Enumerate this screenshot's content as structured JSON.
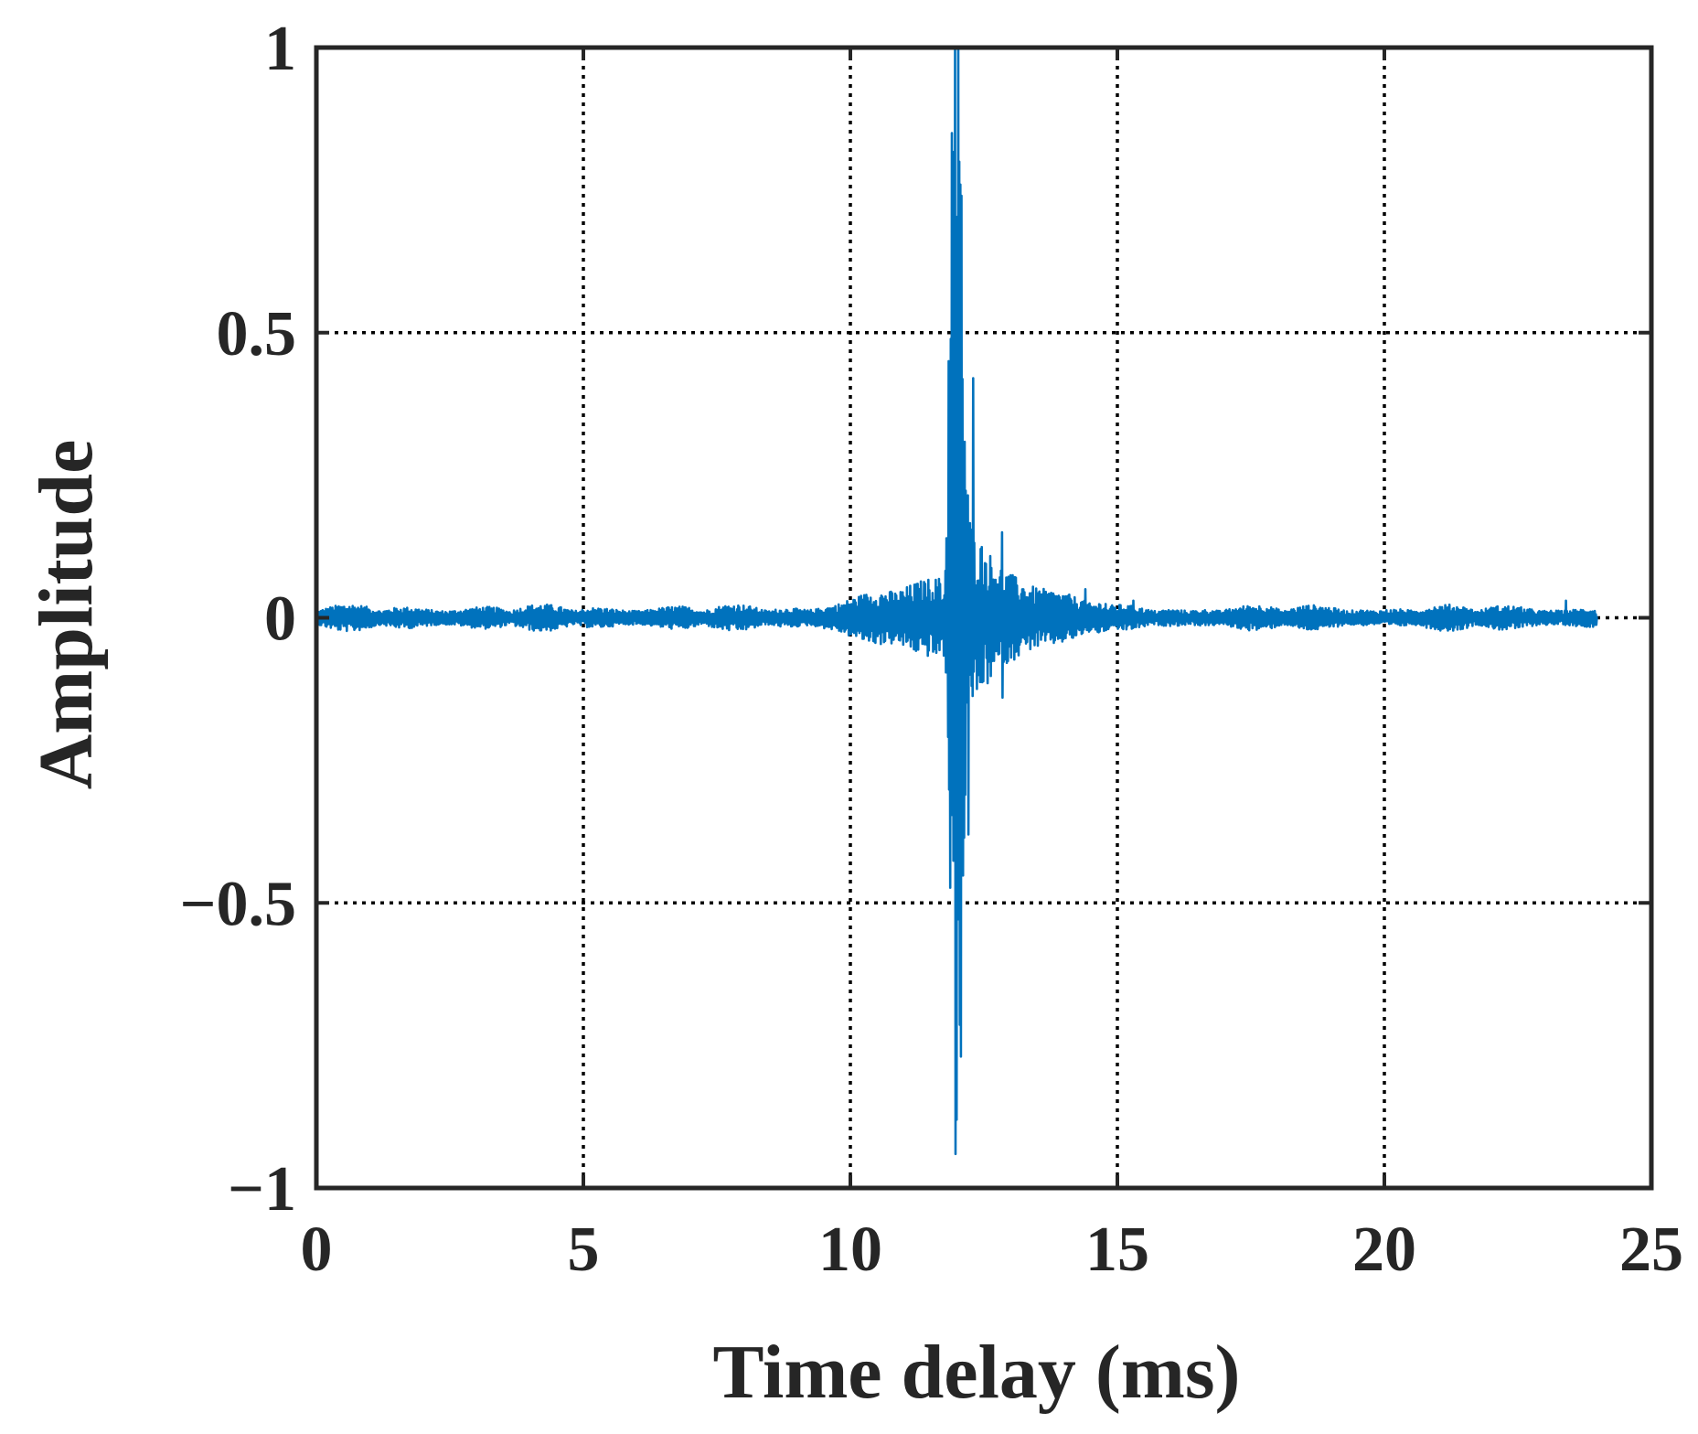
{
  "chart_data": {
    "type": "line",
    "title": "",
    "xlabel": "Time delay (ms)",
    "ylabel": "Amplitude",
    "xlim": [
      0,
      25
    ],
    "ylim": [
      -1,
      1
    ],
    "xticks": [
      0,
      5,
      10,
      15,
      20,
      25
    ],
    "yticks": [
      -1,
      -0.5,
      0,
      0.5,
      1
    ],
    "xtick_labels": [
      "0",
      "5",
      "10",
      "15",
      "20",
      "25"
    ],
    "ytick_labels": [
      "−1",
      "−0.5",
      "0",
      "0.5",
      "1"
    ],
    "grid": true,
    "legend": "none",
    "colors": {
      "series": "#0072BD",
      "axes": "#262626",
      "grid": "#000000"
    },
    "series": [
      {
        "x_range": [
          0,
          24
        ],
        "samples": 2400,
        "peaks": [
          {
            "x": 11.96,
            "y": 1.0
          },
          {
            "x": 11.9,
            "y": 0.85
          },
          {
            "x": 12.0,
            "y": -0.88
          },
          {
            "x": 11.85,
            "y": 0.45
          },
          {
            "x": 12.08,
            "y": 0.74
          },
          {
            "x": 12.3,
            "y": 0.42
          },
          {
            "x": 12.22,
            "y": -0.38
          },
          {
            "x": 12.85,
            "y": 0.15
          },
          {
            "x": 12.85,
            "y": -0.14
          },
          {
            "x": 14.4,
            "y": 0.05
          },
          {
            "x": 15.3,
            "y": 0.03
          },
          {
            "x": 23.4,
            "y": 0.03
          },
          {
            "x": 0.0,
            "y": 0.0
          },
          {
            "x": 24.0,
            "y": 0.0
          }
        ]
      }
    ]
  }
}
